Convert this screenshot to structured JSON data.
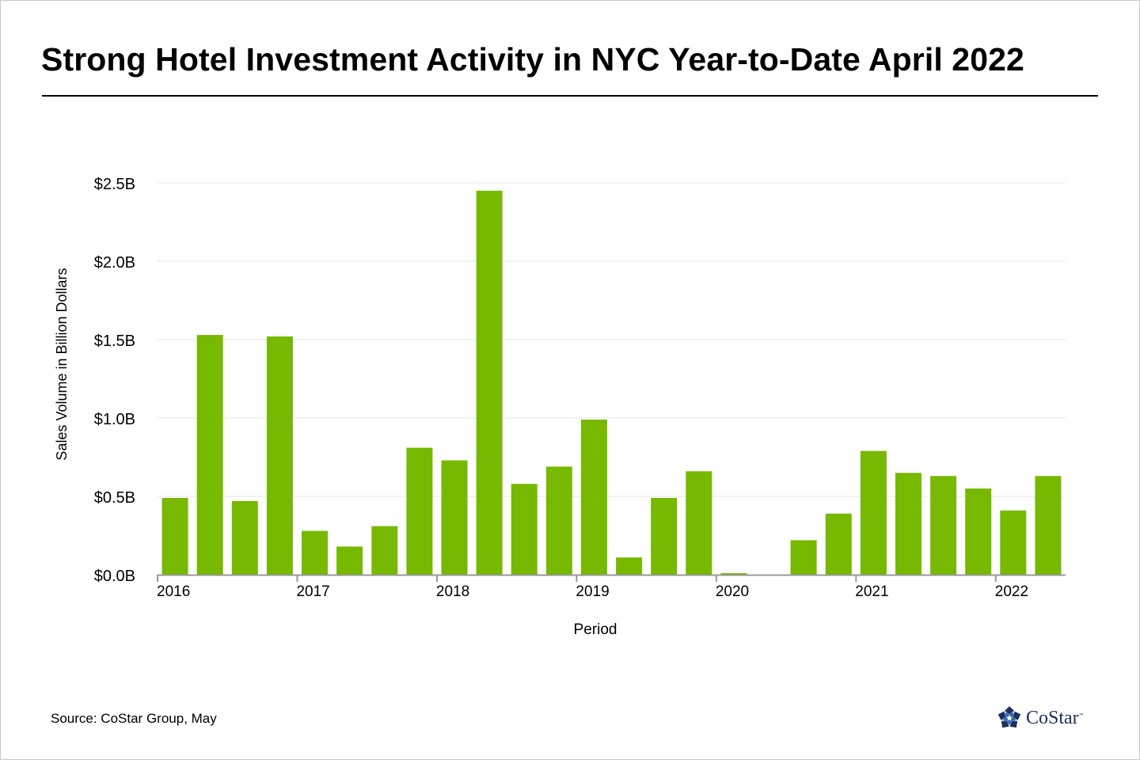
{
  "title": "Strong Hotel Investment Activity in NYC Year-to-Date April 2022",
  "source": "Source: CoStar Group, May",
  "logo": {
    "text": "CoStar",
    "tm": "™"
  },
  "colors": {
    "bar": "#77b800",
    "grid": "#e6e6e6",
    "axis": "#999999"
  },
  "chart_data": {
    "type": "bar",
    "xlabel": "Period",
    "ylabel": "Sales Volume  in Billion Dollars",
    "ylim": [
      0,
      2.5
    ],
    "yticks": [
      {
        "value": 0.0,
        "label": "$0.0B"
      },
      {
        "value": 0.5,
        "label": "$0.5B"
      },
      {
        "value": 1.0,
        "label": "$1.0B"
      },
      {
        "value": 1.5,
        "label": "$1.5B"
      },
      {
        "value": 2.0,
        "label": "$2.0B"
      },
      {
        "value": 2.5,
        "label": "$2.5B"
      }
    ],
    "year_labels": [
      "2016",
      "2017",
      "2018",
      "2019",
      "2020",
      "2021",
      "2022"
    ],
    "categories": [
      "2016 Q1",
      "2016 Q2",
      "2016 Q3",
      "2016 Q4",
      "2017 Q1",
      "2017 Q2",
      "2017 Q3",
      "2017 Q4",
      "2018 Q1",
      "2018 Q2",
      "2018 Q3",
      "2018 Q4",
      "2019 Q1",
      "2019 Q2",
      "2019 Q3",
      "2019 Q4",
      "2020 Q1",
      "2020 Q2",
      "2020 Q3",
      "2020 Q4",
      "2021 Q1",
      "2021 Q2",
      "2021 Q3",
      "2021 Q4",
      "2022 Q1",
      "2022 Q2"
    ],
    "values": [
      0.49,
      1.53,
      0.47,
      1.52,
      0.28,
      0.18,
      0.31,
      0.81,
      0.73,
      2.45,
      0.58,
      0.69,
      0.99,
      0.11,
      0.49,
      0.66,
      0.01,
      0.0,
      0.22,
      0.39,
      0.79,
      0.65,
      0.63,
      0.55,
      0.41,
      0.63
    ],
    "grid": true,
    "legend": "none"
  }
}
